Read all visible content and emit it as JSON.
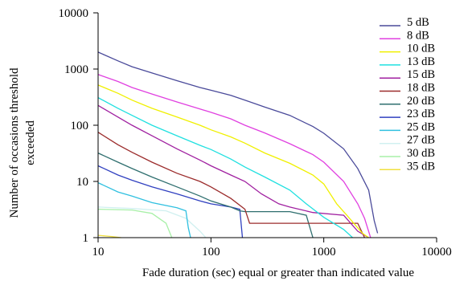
{
  "chart_data": {
    "type": "line",
    "title": "",
    "xlabel": "Fade duration (sec) equal or greater than indicated value",
    "ylabel_lines": [
      "Number of occasions threshold",
      "exceeded"
    ],
    "xscale": "log",
    "yscale": "log",
    "xlim": [
      10,
      10000
    ],
    "ylim": [
      1,
      10000
    ],
    "x_ticks": [
      10,
      100,
      1000,
      10000
    ],
    "y_ticks": [
      1,
      10,
      100,
      1000,
      10000
    ],
    "x_tick_labels": [
      "10",
      "100",
      "1000",
      "10000"
    ],
    "y_tick_labels": [
      "1",
      "10",
      "100",
      "1000",
      "10000"
    ],
    "grid": false,
    "legend_position": "right",
    "series": [
      {
        "name": "5 dB",
        "color": "#4a4a9a",
        "points": [
          [
            10,
            2000
          ],
          [
            15,
            1400
          ],
          [
            20,
            1100
          ],
          [
            30,
            850
          ],
          [
            50,
            620
          ],
          [
            80,
            470
          ],
          [
            100,
            420
          ],
          [
            150,
            340
          ],
          [
            200,
            280
          ],
          [
            300,
            210
          ],
          [
            500,
            150
          ],
          [
            800,
            95
          ],
          [
            1000,
            72
          ],
          [
            1500,
            38
          ],
          [
            2000,
            17
          ],
          [
            2500,
            7
          ],
          [
            2800,
            2
          ],
          [
            3000,
            1.2
          ]
        ]
      },
      {
        "name": "8 dB",
        "color": "#e040e0",
        "points": [
          [
            10,
            800
          ],
          [
            15,
            600
          ],
          [
            20,
            470
          ],
          [
            30,
            360
          ],
          [
            50,
            260
          ],
          [
            80,
            195
          ],
          [
            100,
            170
          ],
          [
            150,
            130
          ],
          [
            200,
            100
          ],
          [
            300,
            73
          ],
          [
            500,
            47
          ],
          [
            800,
            30
          ],
          [
            1000,
            22
          ],
          [
            1500,
            10
          ],
          [
            2000,
            4
          ],
          [
            2300,
            2.2
          ],
          [
            2600,
            1
          ]
        ]
      },
      {
        "name": "10 dB",
        "color": "#f0f000",
        "points": [
          [
            10,
            520
          ],
          [
            15,
            370
          ],
          [
            20,
            280
          ],
          [
            30,
            200
          ],
          [
            50,
            140
          ],
          [
            80,
            100
          ],
          [
            100,
            83
          ],
          [
            150,
            62
          ],
          [
            200,
            48
          ],
          [
            300,
            32
          ],
          [
            500,
            21
          ],
          [
            800,
            13
          ],
          [
            1000,
            9
          ],
          [
            1300,
            4
          ],
          [
            1600,
            2.5
          ],
          [
            2200,
            1.2
          ],
          [
            2500,
            1
          ]
        ]
      },
      {
        "name": "13 dB",
        "color": "#20e0e0",
        "points": [
          [
            10,
            310
          ],
          [
            15,
            200
          ],
          [
            20,
            150
          ],
          [
            30,
            100
          ],
          [
            50,
            65
          ],
          [
            80,
            44
          ],
          [
            100,
            37
          ],
          [
            150,
            25
          ],
          [
            200,
            18
          ],
          [
            300,
            12
          ],
          [
            500,
            7
          ],
          [
            700,
            4
          ],
          [
            1000,
            2.3
          ],
          [
            1500,
            1.4
          ],
          [
            1800,
            1
          ]
        ]
      },
      {
        "name": "15 dB",
        "color": "#a020a0",
        "points": [
          [
            10,
            225
          ],
          [
            15,
            140
          ],
          [
            20,
            100
          ],
          [
            30,
            65
          ],
          [
            50,
            38
          ],
          [
            80,
            24
          ],
          [
            100,
            19
          ],
          [
            150,
            13
          ],
          [
            200,
            10
          ],
          [
            280,
            6
          ],
          [
            400,
            4
          ],
          [
            500,
            3.5
          ],
          [
            800,
            2.8
          ],
          [
            1500,
            2.5
          ],
          [
            2000,
            1.3
          ],
          [
            2500,
            1
          ]
        ]
      },
      {
        "name": "18 dB",
        "color": "#9b2b2b",
        "points": [
          [
            10,
            75
          ],
          [
            15,
            45
          ],
          [
            20,
            33
          ],
          [
            30,
            22
          ],
          [
            50,
            14
          ],
          [
            80,
            10
          ],
          [
            100,
            8
          ],
          [
            150,
            5
          ],
          [
            200,
            3.2
          ],
          [
            220,
            1.8
          ],
          [
            1000,
            1.8
          ],
          [
            2000,
            1.8
          ],
          [
            2300,
            1
          ]
        ]
      },
      {
        "name": "20 dB",
        "color": "#2f6f6f",
        "points": [
          [
            10,
            32
          ],
          [
            15,
            22
          ],
          [
            20,
            17
          ],
          [
            30,
            12
          ],
          [
            50,
            8
          ],
          [
            80,
            5.5
          ],
          [
            100,
            4.5
          ],
          [
            150,
            3.5
          ],
          [
            180,
            3
          ],
          [
            200,
            2.9
          ],
          [
            300,
            2.9
          ],
          [
            500,
            2.9
          ],
          [
            700,
            2.5
          ],
          [
            800,
            1
          ]
        ]
      },
      {
        "name": "23 dB",
        "color": "#3040c0",
        "points": [
          [
            10,
            19
          ],
          [
            15,
            13
          ],
          [
            20,
            10.5
          ],
          [
            30,
            8
          ],
          [
            50,
            6
          ],
          [
            80,
            4.5
          ],
          [
            100,
            4
          ],
          [
            150,
            3.5
          ],
          [
            180,
            3.2
          ],
          [
            190,
            1
          ]
        ]
      },
      {
        "name": "25 dB",
        "color": "#30c0e0",
        "points": [
          [
            10,
            9.5
          ],
          [
            15,
            6.5
          ],
          [
            20,
            5.5
          ],
          [
            30,
            4.2
          ],
          [
            50,
            3.4
          ],
          [
            60,
            3
          ],
          [
            63,
            1.5
          ],
          [
            66,
            1
          ]
        ]
      },
      {
        "name": "27 dB",
        "color": "#d0f0f0",
        "points": [
          [
            10,
            3.5
          ],
          [
            20,
            3.3
          ],
          [
            40,
            3
          ],
          [
            60,
            2.2
          ],
          [
            80,
            1.3
          ],
          [
            90,
            1
          ]
        ]
      },
      {
        "name": "30 dB",
        "color": "#a8f0a8",
        "points": [
          [
            10,
            3.2
          ],
          [
            20,
            3.1
          ],
          [
            30,
            2.7
          ],
          [
            40,
            1.8
          ],
          [
            45,
            1
          ]
        ]
      },
      {
        "name": "35 dB",
        "color": "#f0e040",
        "points": [
          [
            10,
            1.1
          ],
          [
            13,
            1.05
          ],
          [
            16,
            1
          ]
        ]
      }
    ]
  }
}
